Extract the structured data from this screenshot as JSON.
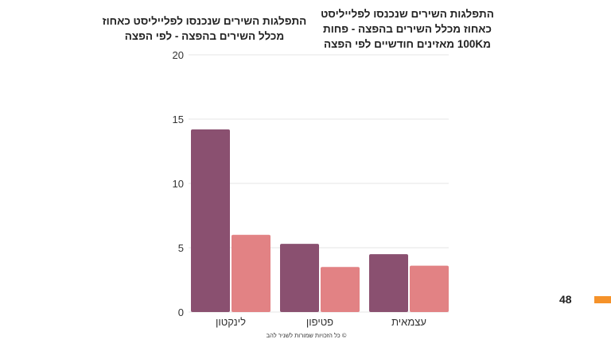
{
  "chart_data": {
    "type": "bar",
    "titles": [
      "התפלגות השירים שנכנסו לפלייליסט כאחוז מכלל השירים בהפצה - לפי הפצה",
      "התפלגות השירים שנכנסו לפלייליסט כאחוז מכלל השירים בהפצה - פחות מ100K מאזינים חודשיים לפי הפצה"
    ],
    "categories": [
      "לינקטון",
      "פטיפון",
      "עצמאית"
    ],
    "series": [
      {
        "name": "התפלגות השירים שנכנסו לפלייליסט כאחוז מכלל השירים בהפצה - לפי הפצה",
        "color": "#8a5070",
        "values": [
          14.2,
          5.3,
          4.5
        ]
      },
      {
        "name": "התפלגות השירים שנכנסו לפלייליסט כאחוז מכלל השירים בהפצה - פחות מ100K מאזינים חודשיים לפי הפצה",
        "color": "#e28284",
        "values": [
          6.0,
          3.5,
          3.6
        ]
      }
    ],
    "yticks": [
      0,
      5,
      10,
      15,
      20
    ],
    "ylim": [
      0,
      20
    ],
    "grid": true,
    "xlabel": "",
    "ylabel": ""
  },
  "title_lines": {
    "left": [
      "התפלגות השירים שנכנסו לפלייליסט כאחוז",
      "מכלל השירים בהפצה - לפי הפצה"
    ],
    "right": [
      "התפלגות השירים שנכנסו לפלייליסט",
      "כאחוז מכלל השירים בהפצה - פחות",
      "מ100K מאזינים חודשיים לפי הפצה"
    ]
  },
  "footer": {
    "copyright": "© כל הזכויות שמורות לשניר להב",
    "page_number": "48",
    "accent_color": "#f5922a"
  }
}
